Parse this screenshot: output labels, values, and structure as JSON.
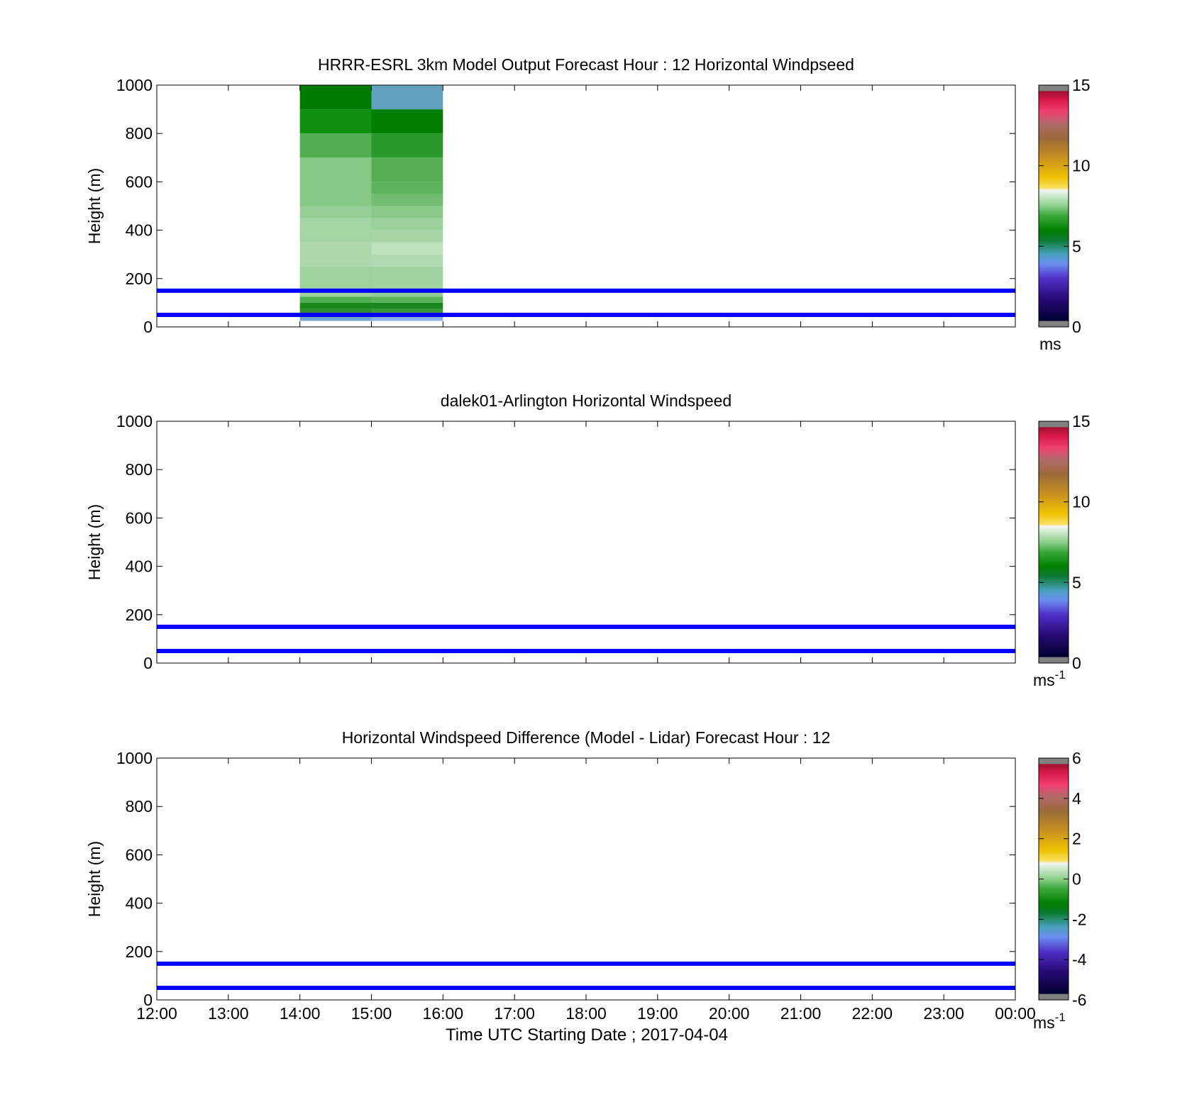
{
  "chart_data": [
    {
      "type": "heatmap",
      "title": "HRRR-ESRL 3km Model Output   Forecast Hour : 12 Horizontal Windpseed",
      "ylabel": "Height (m)",
      "xlabel": "",
      "xlim": [
        0,
        12
      ],
      "ylim": [
        0,
        1000
      ],
      "x_ticks": [
        "12:00",
        "13:00",
        "14:00",
        "15:00",
        "16:00",
        "17:00",
        "18:00",
        "19:00",
        "20:00",
        "21:00",
        "22:00",
        "23:00",
        "00:00"
      ],
      "show_x_ticklabels": false,
      "y_ticks": [
        0,
        200,
        400,
        600,
        800,
        1000
      ],
      "colorbar": {
        "min": 0,
        "max": 15,
        "ticks": [
          0,
          5,
          10,
          15
        ],
        "unit": "ms",
        "unit_sup": ""
      },
      "reference_lines_m": [
        150,
        50
      ],
      "reference_line_color": "#0000ff",
      "cells": [
        {
          "x0": 2,
          "x1": 3,
          "y0": 25,
          "y1": 40,
          "color": "#6fa3d8"
        },
        {
          "x0": 2,
          "x1": 3,
          "y0": 40,
          "y1": 75,
          "color": "#2e8b2e"
        },
        {
          "x0": 2,
          "x1": 3,
          "y0": 75,
          "y1": 100,
          "color": "#1b8a1b"
        },
        {
          "x0": 2,
          "x1": 3,
          "y0": 100,
          "y1": 125,
          "color": "#4fae4f"
        },
        {
          "x0": 2,
          "x1": 3,
          "y0": 125,
          "y1": 250,
          "color": "#9dd29d"
        },
        {
          "x0": 2,
          "x1": 3,
          "y0": 250,
          "y1": 350,
          "color": "#acd8ac"
        },
        {
          "x0": 2,
          "x1": 3,
          "y0": 350,
          "y1": 450,
          "color": "#a3d4a3"
        },
        {
          "x0": 2,
          "x1": 3,
          "y0": 450,
          "y1": 500,
          "color": "#96cf96"
        },
        {
          "x0": 2,
          "x1": 3,
          "y0": 500,
          "y1": 700,
          "color": "#86c886"
        },
        {
          "x0": 2,
          "x1": 3,
          "y0": 700,
          "y1": 800,
          "color": "#52ae52"
        },
        {
          "x0": 2,
          "x1": 3,
          "y0": 800,
          "y1": 900,
          "color": "#109010"
        },
        {
          "x0": 2,
          "x1": 3,
          "y0": 900,
          "y1": 1000,
          "color": "#007a00"
        },
        {
          "x0": 3,
          "x1": 4,
          "y0": 25,
          "y1": 40,
          "color": "#8fb0f0"
        },
        {
          "x0": 3,
          "x1": 4,
          "y0": 40,
          "y1": 75,
          "color": "#3a9a3a"
        },
        {
          "x0": 3,
          "x1": 4,
          "y0": 75,
          "y1": 100,
          "color": "#1a881a"
        },
        {
          "x0": 3,
          "x1": 4,
          "y0": 100,
          "y1": 125,
          "color": "#5ab25a"
        },
        {
          "x0": 3,
          "x1": 4,
          "y0": 125,
          "y1": 150,
          "color": "#93cc93"
        },
        {
          "x0": 3,
          "x1": 4,
          "y0": 150,
          "y1": 250,
          "color": "#a0d3a0"
        },
        {
          "x0": 3,
          "x1": 4,
          "y0": 250,
          "y1": 300,
          "color": "#afd9af"
        },
        {
          "x0": 3,
          "x1": 4,
          "y0": 300,
          "y1": 350,
          "color": "#bde0bd"
        },
        {
          "x0": 3,
          "x1": 4,
          "y0": 350,
          "y1": 400,
          "color": "#a6d5a6"
        },
        {
          "x0": 3,
          "x1": 4,
          "y0": 400,
          "y1": 450,
          "color": "#9ad19a"
        },
        {
          "x0": 3,
          "x1": 4,
          "y0": 450,
          "y1": 500,
          "color": "#8ac98a"
        },
        {
          "x0": 3,
          "x1": 4,
          "y0": 500,
          "y1": 550,
          "color": "#72bd72"
        },
        {
          "x0": 3,
          "x1": 4,
          "y0": 550,
          "y1": 600,
          "color": "#5cb35c"
        },
        {
          "x0": 3,
          "x1": 4,
          "y0": 600,
          "y1": 700,
          "color": "#55b055"
        },
        {
          "x0": 3,
          "x1": 4,
          "y0": 700,
          "y1": 800,
          "color": "#2a9a2a"
        },
        {
          "x0": 3,
          "x1": 4,
          "y0": 800,
          "y1": 900,
          "color": "#008000"
        },
        {
          "x0": 3,
          "x1": 4,
          "y0": 900,
          "y1": 1000,
          "color": "#62a0c0"
        },
        {
          "x0": 3,
          "x1": 4,
          "y0": 1000,
          "y1": 1000,
          "color": "#7a8ced"
        }
      ]
    },
    {
      "type": "heatmap",
      "title": "dalek01-Arlington  Horizontal Windspeed",
      "ylabel": "Height (m)",
      "xlabel": "",
      "xlim": [
        0,
        12
      ],
      "ylim": [
        0,
        1000
      ],
      "x_ticks": [
        "12:00",
        "13:00",
        "14:00",
        "15:00",
        "16:00",
        "17:00",
        "18:00",
        "19:00",
        "20:00",
        "21:00",
        "22:00",
        "23:00",
        "00:00"
      ],
      "show_x_ticklabels": false,
      "y_ticks": [
        0,
        200,
        400,
        600,
        800,
        1000
      ],
      "colorbar": {
        "min": 0,
        "max": 15,
        "ticks": [
          0,
          5,
          10,
          15
        ],
        "unit": "ms",
        "unit_sup": "-1"
      },
      "reference_lines_m": [
        150,
        50
      ],
      "reference_line_color": "#0000ff",
      "cells": []
    },
    {
      "type": "heatmap",
      "title": "Horizontal Windspeed Difference (Model - Lidar) Forecast Hour : 12",
      "ylabel": "Height (m)",
      "xlabel": "Time UTC  Starting Date ; 2017-04-04",
      "xlim": [
        0,
        12
      ],
      "ylim": [
        0,
        1000
      ],
      "x_ticks": [
        "12:00",
        "13:00",
        "14:00",
        "15:00",
        "16:00",
        "17:00",
        "18:00",
        "19:00",
        "20:00",
        "21:00",
        "22:00",
        "23:00",
        "00:00"
      ],
      "show_x_ticklabels": true,
      "y_ticks": [
        0,
        200,
        400,
        600,
        800,
        1000
      ],
      "colorbar": {
        "min": -6,
        "max": 6,
        "ticks": [
          -6,
          -4,
          -2,
          0,
          2,
          4,
          6
        ],
        "unit": "ms",
        "unit_sup": "-1"
      },
      "reference_lines_m": [
        150,
        50
      ],
      "reference_line_color": "#0000ff",
      "cells": []
    }
  ],
  "colormap": {
    "stops": [
      [
        0.0,
        "#808080"
      ],
      [
        0.024,
        "#808080"
      ],
      [
        0.025,
        "#000030"
      ],
      [
        0.12,
        "#2a0a78"
      ],
      [
        0.2,
        "#5030c8"
      ],
      [
        0.26,
        "#6a8ef0"
      ],
      [
        0.3,
        "#4aa0c0"
      ],
      [
        0.36,
        "#0a7a30"
      ],
      [
        0.4,
        "#008000"
      ],
      [
        0.46,
        "#3aa83a"
      ],
      [
        0.5,
        "#8ccf8c"
      ],
      [
        0.555,
        "#e0f0e0"
      ],
      [
        0.565,
        "#f4f4f4"
      ],
      [
        0.575,
        "#f8e060"
      ],
      [
        0.62,
        "#f0c000"
      ],
      [
        0.7,
        "#c89020"
      ],
      [
        0.78,
        "#9a6a3a"
      ],
      [
        0.84,
        "#b06a6a"
      ],
      [
        0.89,
        "#f04070"
      ],
      [
        0.94,
        "#d81848"
      ],
      [
        0.975,
        "#a01030"
      ],
      [
        0.976,
        "#808080"
      ],
      [
        1.0,
        "#808080"
      ]
    ]
  }
}
